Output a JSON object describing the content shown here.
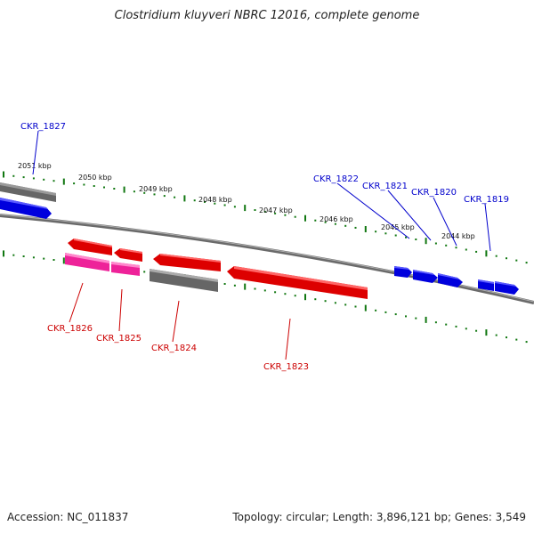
{
  "title": "Clostridium kluyveri NBRC 12016, complete genome",
  "footer": {
    "accession": "Accession: NC_011837",
    "summary": "Topology: circular; Length: 3,896,121 bp; Genes: 3,549"
  },
  "scale_labels": [
    "2051 kbp",
    "2050 kbp",
    "2049 kbp",
    "2048 kbp",
    "2047 kbp",
    "2046 kbp",
    "2045 kbp",
    "2044 kbp"
  ],
  "genes": [
    {
      "id": "CKR_1827",
      "strand": "forward",
      "color": "#0000ee"
    },
    {
      "id": "CKR_1822",
      "strand": "forward",
      "color": "#0000ee"
    },
    {
      "id": "CKR_1821",
      "strand": "forward",
      "color": "#0000ee"
    },
    {
      "id": "CKR_1820",
      "strand": "forward",
      "color": "#0000ee"
    },
    {
      "id": "CKR_1819",
      "strand": "forward",
      "color": "#0000ee"
    },
    {
      "id": "CKR_1826",
      "strand": "reverse",
      "color": "#ee0000"
    },
    {
      "id": "CKR_1825",
      "strand": "reverse",
      "color": "#ee0000"
    },
    {
      "id": "CKR_1824",
      "strand": "reverse",
      "color": "#ee0000"
    },
    {
      "id": "CKR_1823",
      "strand": "reverse",
      "color": "#ee0000"
    }
  ],
  "colors": {
    "forward_gene": "#0000ee",
    "reverse_gene": "#ee0000",
    "pseudo_gene": "#777777",
    "rna_gene": "#ee2299",
    "backbone": "#777777",
    "scale_ticks": "#117711"
  }
}
